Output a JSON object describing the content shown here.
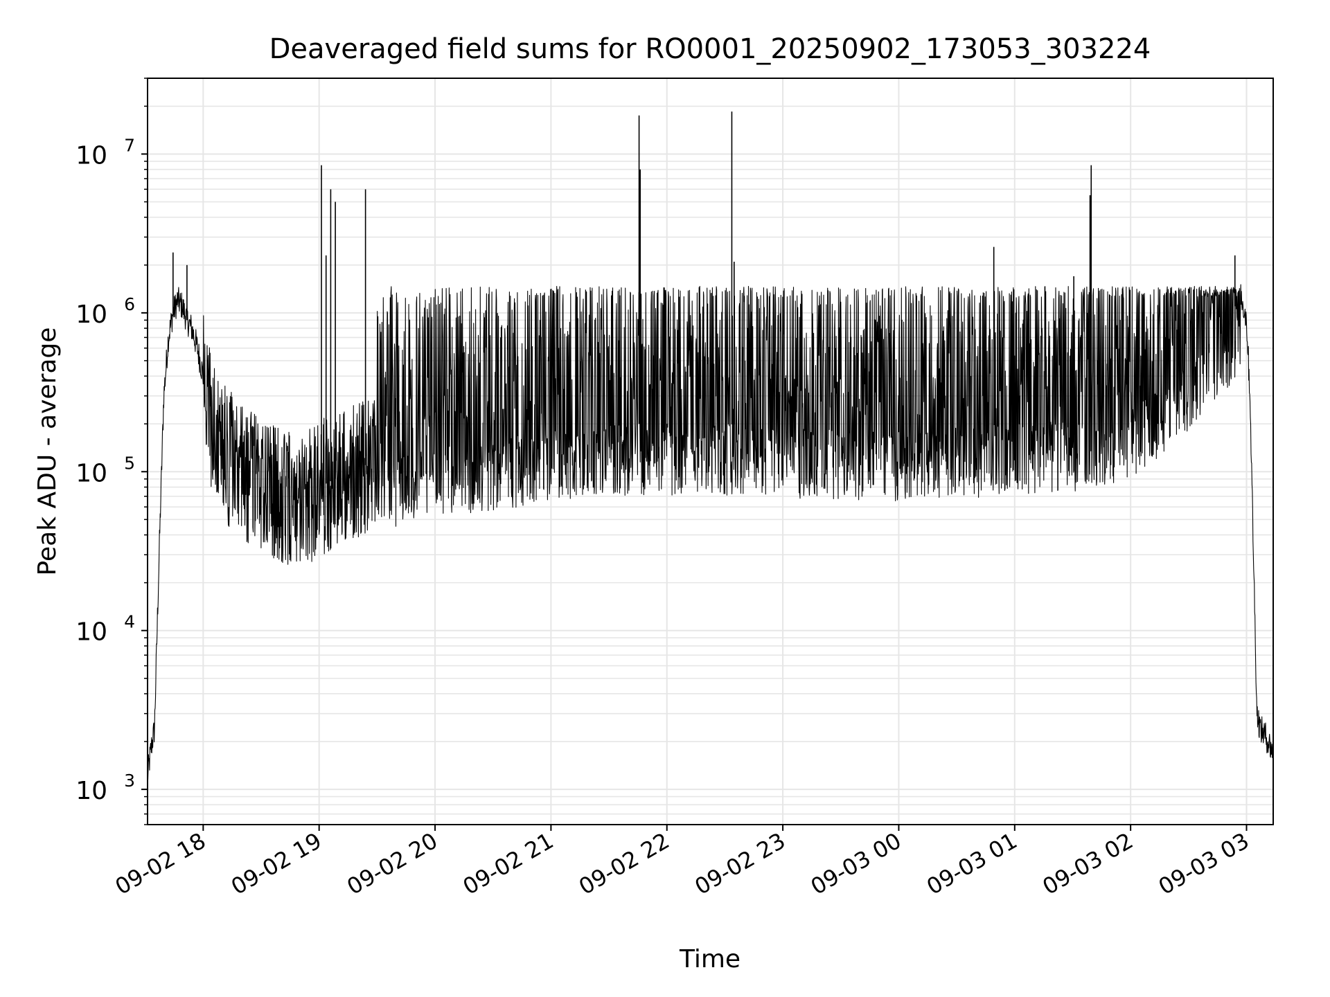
{
  "chart_data": {
    "type": "line",
    "title": "Deaveraged field sums for RO0001_20250902_173053_303224",
    "xlabel": "Time",
    "ylabel": "Peak ADU - average",
    "yscale": "log",
    "ylim": [
      600,
      30000000
    ],
    "xlim_hours": [
      17.52,
      27.23
    ],
    "grid": true,
    "line_color": "#000000",
    "grid_color": "#e6e6e6",
    "x_ticks": [
      {
        "label": "09-02 18",
        "hour": 18
      },
      {
        "label": "09-02 19",
        "hour": 19
      },
      {
        "label": "09-02 20",
        "hour": 20
      },
      {
        "label": "09-02 21",
        "hour": 21
      },
      {
        "label": "09-02 22",
        "hour": 22
      },
      {
        "label": "09-02 23",
        "hour": 23
      },
      {
        "label": "09-03 00",
        "hour": 24
      },
      {
        "label": "09-03 01",
        "hour": 25
      },
      {
        "label": "09-03 02",
        "hour": 26
      },
      {
        "label": "09-03 03",
        "hour": 27
      }
    ],
    "y_ticks": [
      {
        "base": "10",
        "exp": "3",
        "value": 1000
      },
      {
        "base": "10",
        "exp": "4",
        "value": 10000
      },
      {
        "base": "10",
        "exp": "5",
        "value": 100000
      },
      {
        "base": "10",
        "exp": "6",
        "value": 1000000
      },
      {
        "base": "10",
        "exp": "7",
        "value": 10000000
      }
    ],
    "series": [
      {
        "name": "Peak ADU - average",
        "points": [
          [
            17.52,
            1200
          ],
          [
            17.55,
            1800
          ],
          [
            17.58,
            2400
          ],
          [
            17.62,
            30000
          ],
          [
            17.66,
            300000
          ],
          [
            17.7,
            700000
          ],
          [
            17.74,
            1000000
          ],
          [
            17.78,
            1200000
          ],
          [
            17.82,
            1100000
          ],
          [
            17.86,
            900000
          ],
          [
            17.9,
            800000
          ],
          [
            17.95,
            600000
          ],
          [
            18.0,
            400000
          ],
          [
            18.05,
            250000
          ],
          [
            18.1,
            180000
          ],
          [
            18.2,
            130000
          ],
          [
            18.3,
            110000
          ],
          [
            18.4,
            95000
          ],
          [
            18.5,
            85000
          ],
          [
            18.6,
            75000
          ],
          [
            18.7,
            70000
          ],
          [
            18.8,
            68000
          ],
          [
            18.9,
            72000
          ],
          [
            19.0,
            80000
          ],
          [
            19.2,
            95000
          ],
          [
            19.4,
            110000
          ],
          [
            19.6,
            120000
          ],
          [
            19.8,
            130000
          ],
          [
            20.0,
            140000
          ],
          [
            20.5,
            160000
          ],
          [
            21.0,
            180000
          ],
          [
            21.5,
            200000
          ],
          [
            22.0,
            200000
          ],
          [
            22.5,
            200000
          ],
          [
            23.0,
            190000
          ],
          [
            23.5,
            190000
          ],
          [
            24.0,
            180000
          ],
          [
            24.5,
            190000
          ],
          [
            25.0,
            200000
          ],
          [
            25.5,
            210000
          ],
          [
            26.0,
            250000
          ],
          [
            26.3,
            350000
          ],
          [
            26.6,
            550000
          ],
          [
            26.8,
            800000
          ],
          [
            26.9,
            1100000
          ],
          [
            26.95,
            1300000
          ],
          [
            27.0,
            900000
          ],
          [
            27.03,
            300000
          ],
          [
            27.06,
            30000
          ],
          [
            27.09,
            3000
          ],
          [
            27.12,
            2400
          ],
          [
            27.16,
            2200
          ],
          [
            27.2,
            1900
          ],
          [
            27.23,
            1700
          ]
        ],
        "spikes": [
          [
            17.74,
            2400000
          ],
          [
            17.86,
            2000000
          ],
          [
            19.02,
            8500000
          ],
          [
            19.06,
            2300000
          ],
          [
            19.1,
            6000000
          ],
          [
            19.14,
            5000000
          ],
          [
            19.4,
            6000000
          ],
          [
            21.76,
            17500000
          ],
          [
            21.77,
            8000000
          ],
          [
            22.56,
            18500000
          ],
          [
            22.58,
            2100000
          ],
          [
            24.82,
            2600000
          ],
          [
            25.51,
            1700000
          ],
          [
            25.66,
            8500000
          ],
          [
            25.65,
            5500000
          ],
          [
            26.9,
            2300000
          ]
        ]
      }
    ]
  }
}
